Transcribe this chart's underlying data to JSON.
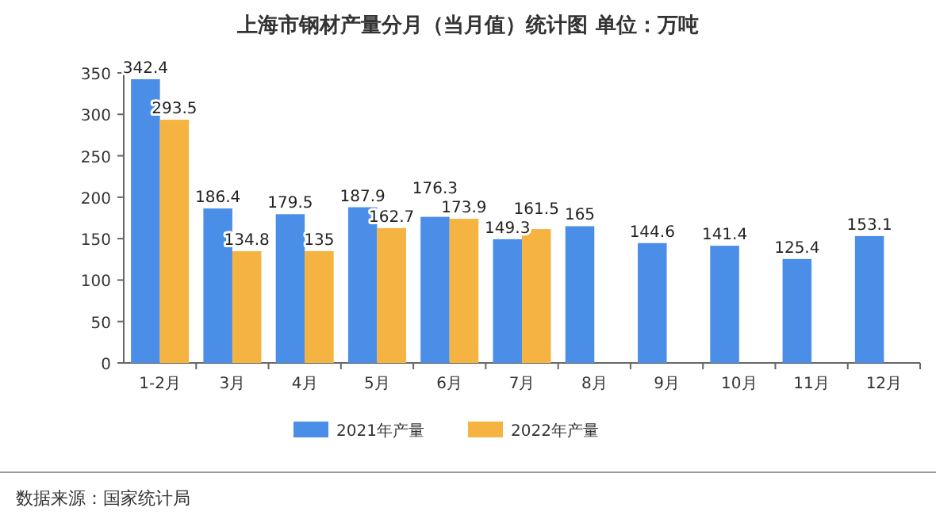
{
  "chart_data": {
    "type": "bar",
    "title": "上海市钢材产量分月（当月值）统计图 单位：万吨",
    "categories": [
      "1-2月",
      "3月",
      "4月",
      "5月",
      "6月",
      "7月",
      "8月",
      "9月",
      "10月",
      "11月",
      "12月"
    ],
    "series": [
      {
        "name": "2021年产量",
        "color": "#4a8ee8",
        "values": [
          342.4,
          186.4,
          179.5,
          187.9,
          176.3,
          149.3,
          165,
          144.6,
          141.4,
          125.4,
          153.1
        ]
      },
      {
        "name": "2022年产量",
        "color": "#f5b342",
        "values": [
          293.5,
          134.8,
          135,
          162.7,
          173.9,
          161.5,
          null,
          null,
          null,
          null,
          null
        ]
      }
    ],
    "ylim": [
      0,
      350
    ],
    "yticks": [
      0,
      50,
      100,
      150,
      200,
      250,
      300,
      350
    ],
    "data_labels": true,
    "legend": "bottom",
    "grid": false,
    "annotations": [
      "数据来源：国家统计局"
    ]
  }
}
